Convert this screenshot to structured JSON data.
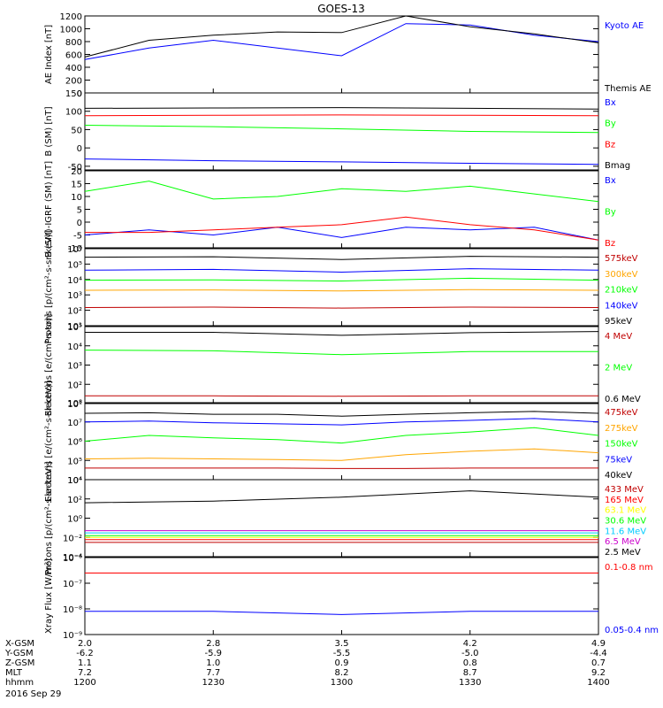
{
  "title": "GOES-13",
  "date_label": "2016 Sep 29",
  "colors": {
    "black": "#000000",
    "blue": "#0000ff",
    "green": "#00ff00",
    "red": "#ff0000",
    "darkred": "#c00000",
    "orange": "#ffa500",
    "yellow": "#ffff00",
    "cyan": "#00ccff",
    "purple": "#cc00cc"
  },
  "ephemeris": {
    "rows": [
      {
        "label": "X-GSM",
        "values": [
          "2.0",
          "2.8",
          "3.5",
          "4.2",
          "4.9"
        ]
      },
      {
        "label": "Y-GSM",
        "values": [
          "-6.2",
          "-5.9",
          "-5.5",
          "-5.0",
          "-4.4"
        ]
      },
      {
        "label": "Z-GSM",
        "values": [
          "1.1",
          "1.0",
          "0.9",
          "0.8",
          "0.7"
        ]
      },
      {
        "label": "MLT",
        "values": [
          "7.2",
          "7.7",
          "8.2",
          "8.7",
          "9.2"
        ]
      },
      {
        "label": "hhmm",
        "values": [
          "1200",
          "1230",
          "1300",
          "1330",
          "1400"
        ]
      }
    ]
  },
  "chart_data": [
    {
      "type": "line",
      "ylabel": "AE Index [nT]",
      "ylim": [
        0,
        1200
      ],
      "yscale": "linear",
      "yticks": [
        0,
        200,
        400,
        600,
        800,
        1000,
        1200
      ],
      "ytick_labels": [
        "0",
        "200",
        "400",
        "600",
        "800",
        "1000",
        "1200"
      ],
      "x": [
        "1200",
        "1215",
        "1230",
        "1245",
        "1300",
        "1315",
        "1330",
        "1345",
        "1400"
      ],
      "series": [
        {
          "name": "Kyoto AE",
          "color": "blue",
          "values": [
            520,
            700,
            820,
            700,
            580,
            1080,
            1060,
            900,
            800
          ]
        },
        {
          "name": "Themis AE",
          "color": "black",
          "values": [
            560,
            820,
            900,
            950,
            940,
            1200,
            1030,
            920,
            780
          ]
        }
      ]
    },
    {
      "type": "line",
      "ylabel": "B (SM) [nT]",
      "ylim": [
        -60,
        150
      ],
      "yscale": "linear",
      "yticks": [
        -50,
        0,
        50,
        100,
        150
      ],
      "ytick_labels": [
        "-50",
        "0",
        "50",
        "100",
        "150"
      ],
      "x": [
        "1200",
        "1230",
        "1300",
        "1330",
        "1400"
      ],
      "series": [
        {
          "name": "Bx",
          "color": "blue",
          "values": [
            -30,
            -35,
            -38,
            -42,
            -45
          ]
        },
        {
          "name": "By",
          "color": "green",
          "values": [
            62,
            58,
            52,
            45,
            42
          ]
        },
        {
          "name": "Bz",
          "color": "red",
          "values": [
            88,
            89,
            90,
            89,
            88
          ]
        },
        {
          "name": "Bmag",
          "color": "black",
          "values": [
            108,
            109,
            110,
            108,
            106
          ]
        }
      ]
    },
    {
      "type": "line",
      "ylabel": "B (SM)-IGRF (SM) [nT]",
      "ylim": [
        -10,
        20
      ],
      "yscale": "linear",
      "yticks": [
        -10,
        -5,
        0,
        5,
        10,
        15,
        20
      ],
      "ytick_labels": [
        "-10",
        "-5",
        "0",
        "5",
        "10",
        "15",
        "20"
      ],
      "x": [
        "1200",
        "1215",
        "1230",
        "1245",
        "1300",
        "1315",
        "1330",
        "1345",
        "1400"
      ],
      "series": [
        {
          "name": "Bx",
          "color": "blue",
          "values": [
            -5,
            -3,
            -5,
            -2,
            -6,
            -2,
            -3,
            -2,
            -7
          ]
        },
        {
          "name": "By",
          "color": "green",
          "values": [
            12,
            16,
            9,
            10,
            13,
            12,
            14,
            11,
            8
          ]
        },
        {
          "name": "Bz",
          "color": "red",
          "values": [
            -4,
            -4,
            -3,
            -2,
            -1,
            2,
            -1,
            -3,
            -7
          ]
        }
      ]
    },
    {
      "type": "line",
      "ylabel": "Protons [p/(cm²-s-sr-keV)]",
      "ylim": [
        10,
        1000000
      ],
      "yscale": "log",
      "yticks": [
        10,
        100,
        1000,
        10000,
        100000,
        1000000
      ],
      "ytick_labels": [
        "10¹",
        "10²",
        "10³",
        "10⁴",
        "10⁵",
        "10⁶"
      ],
      "x": [
        "1200",
        "1230",
        "1300",
        "1330",
        "1400"
      ],
      "series": [
        {
          "name": "575keV",
          "color": "darkred",
          "values": [
            150,
            160,
            140,
            160,
            150
          ]
        },
        {
          "name": "300keV",
          "color": "orange",
          "values": [
            2000,
            2100,
            1800,
            2200,
            2000
          ]
        },
        {
          "name": "210keV",
          "color": "green",
          "values": [
            9000,
            9500,
            8000,
            12000,
            9000
          ]
        },
        {
          "name": "140keV",
          "color": "blue",
          "values": [
            40000,
            45000,
            30000,
            50000,
            40000
          ]
        },
        {
          "name": "95keV",
          "color": "black",
          "values": [
            280000,
            300000,
            200000,
            320000,
            280000
          ]
        }
      ]
    },
    {
      "type": "line",
      "ylabel": "Electrons [e/(cm²-s-sr)]",
      "ylim": [
        10,
        100000
      ],
      "yscale": "log",
      "yticks": [
        10,
        100,
        1000,
        10000,
        100000
      ],
      "ytick_labels": [
        "10¹",
        "10²",
        "10³",
        "10⁴",
        "10⁵"
      ],
      "x": [
        "1200",
        "1230",
        "1300",
        "1330",
        "1400"
      ],
      "series": [
        {
          "name": "4 MeV",
          "color": "darkred",
          "values": [
            25,
            25,
            24,
            25,
            25
          ]
        },
        {
          "name": "2 MeV",
          "color": "green",
          "values": [
            6000,
            5500,
            3500,
            5000,
            5000
          ]
        },
        {
          "name": "0.6 MeV",
          "color": "black",
          "values": [
            50000,
            50000,
            35000,
            48000,
            55000
          ]
        }
      ]
    },
    {
      "type": "line",
      "ylabel": "Electrons [e/(cm²-s-sr-keV)]",
      "ylim": [
        10000,
        100000000
      ],
      "yscale": "log",
      "yticks": [
        10000,
        100000,
        1000000,
        10000000,
        100000000
      ],
      "ytick_labels": [
        "10⁴",
        "10⁵",
        "10⁶",
        "10⁷",
        "10⁸"
      ],
      "x": [
        "1200",
        "1215",
        "1230",
        "1245",
        "1300",
        "1315",
        "1330",
        "1345",
        "1400"
      ],
      "series": [
        {
          "name": "475keV",
          "color": "darkred",
          "values": [
            40000,
            40000,
            40000,
            40000,
            38000,
            38000,
            40000,
            40000,
            40000
          ]
        },
        {
          "name": "275keV",
          "color": "orange",
          "values": [
            120000,
            130000,
            120000,
            110000,
            100000,
            200000,
            300000,
            400000,
            250000
          ]
        },
        {
          "name": "150keV",
          "color": "green",
          "values": [
            1000000,
            2000000,
            1500000,
            1200000,
            800000,
            2000000,
            3000000,
            5000000,
            2000000
          ]
        },
        {
          "name": "75keV",
          "color": "blue",
          "values": [
            10000000,
            11000000,
            9000000,
            8000000,
            7000000,
            10000000,
            12000000,
            15000000,
            10000000
          ]
        },
        {
          "name": "40keV",
          "color": "black",
          "values": [
            28000000,
            30000000,
            25000000,
            25000000,
            20000000,
            25000000,
            30000000,
            35000000,
            28000000
          ]
        }
      ]
    },
    {
      "type": "line",
      "ylabel": "Protons [p/(cm²-s-sr-keV)]",
      "ylim": [
        0.0001,
        10000
      ],
      "yscale": "log",
      "yticks": [
        0.0001,
        0.01,
        1,
        100,
        10000
      ],
      "ytick_labels": [
        "10⁻⁴",
        "10⁻²",
        "10⁰",
        "10²",
        "10⁴"
      ],
      "x": [
        "1200",
        "1230",
        "1300",
        "1330",
        "1400"
      ],
      "series": [
        {
          "name": "433 MeV",
          "color": "darkred",
          "values": [
            0.003,
            0.003,
            0.003,
            0.003,
            0.003
          ]
        },
        {
          "name": "165 MeV",
          "color": "red",
          "values": [
            0.006,
            0.006,
            0.006,
            0.006,
            0.006
          ]
        },
        {
          "name": "63.1 MeV",
          "color": "yellow",
          "values": [
            0.01,
            0.01,
            0.01,
            0.01,
            0.01
          ]
        },
        {
          "name": "30.6 MeV",
          "color": "green",
          "values": [
            0.015,
            0.015,
            0.015,
            0.015,
            0.015
          ]
        },
        {
          "name": "11.6 MeV",
          "color": "cyan",
          "values": [
            0.03,
            0.03,
            0.03,
            0.03,
            0.03
          ]
        },
        {
          "name": "6.5 MeV",
          "color": "purple",
          "values": [
            0.05,
            0.05,
            0.05,
            0.05,
            0.05
          ]
        },
        {
          "name": "2.5 MeV",
          "color": "black",
          "values": [
            40,
            60,
            150,
            700,
            150
          ]
        }
      ]
    },
    {
      "type": "line",
      "ylabel": "Xray Flux [W/m²]",
      "ylim": [
        1e-09,
        1e-06
      ],
      "yscale": "log",
      "yticks": [
        1e-09,
        1e-08,
        1e-07,
        1e-06
      ],
      "ytick_labels": [
        "10⁻⁹",
        "10⁻⁸",
        "10⁻⁷",
        "10⁻⁶"
      ],
      "x": [
        "1200",
        "1230",
        "1300",
        "1330",
        "1400"
      ],
      "series": [
        {
          "name": "0.1-0.8 nm",
          "color": "red",
          "values": [
            2.5e-07,
            2.5e-07,
            2.5e-07,
            2.5e-07,
            2.5e-07
          ]
        },
        {
          "name": "0.05-0.4 nm",
          "color": "blue",
          "values": [
            8e-09,
            8e-09,
            6e-09,
            8e-09,
            8e-09
          ]
        }
      ]
    }
  ]
}
